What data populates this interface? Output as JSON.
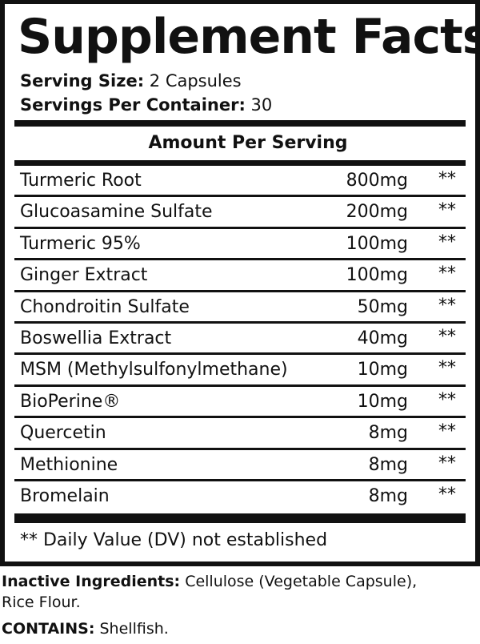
{
  "title": "Supplement Facts",
  "serving_size": {
    "label": "Serving Size:",
    "value": "2 Capsules"
  },
  "servings_per_container": {
    "label": "Servings Per Container:",
    "value": "30"
  },
  "amount_header": "Amount Per Serving",
  "ingredients": [
    {
      "name": "Turmeric Root",
      "amount": "800mg",
      "dv": "**"
    },
    {
      "name": "Glucoasamine Sulfate",
      "amount": "200mg",
      "dv": "**"
    },
    {
      "name": "Turmeric 95%",
      "amount": "100mg",
      "dv": "**"
    },
    {
      "name": "Ginger Extract",
      "amount": "100mg",
      "dv": "**"
    },
    {
      "name": "Chondroitin Sulfate",
      "amount": "50mg",
      "dv": "**"
    },
    {
      "name": "Boswellia Extract",
      "amount": "40mg",
      "dv": "**"
    },
    {
      "name": "MSM (Methylsulfonylmethane)",
      "amount": "10mg",
      "dv": "**"
    },
    {
      "name": "BioPerine®",
      "amount": "10mg",
      "dv": "**"
    },
    {
      "name": "Quercetin",
      "amount": "8mg",
      "dv": "**"
    },
    {
      "name": "Methionine",
      "amount": "8mg",
      "dv": "**"
    },
    {
      "name": "Bromelain",
      "amount": "8mg",
      "dv": "**"
    }
  ],
  "footnote": "** Daily Value (DV) not established",
  "inactive": {
    "label": "Inactive Ingredients:",
    "value": "Cellulose (Vegetable Capsule),",
    "value2": "Rice Flour."
  },
  "contains": {
    "label": "CONTAINS:",
    "value": "Shellfish."
  }
}
